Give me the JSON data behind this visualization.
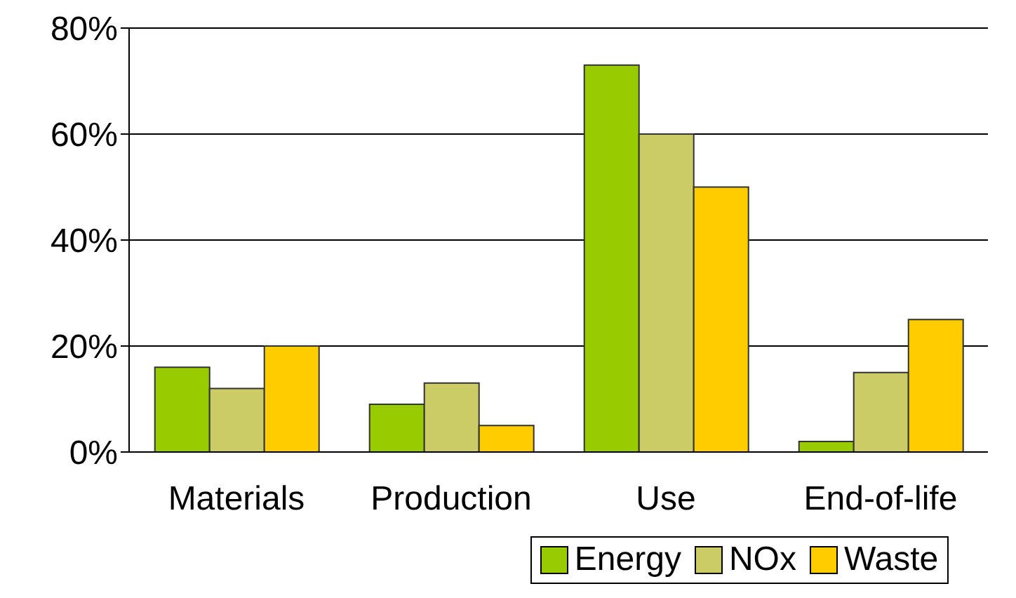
{
  "chart_data": {
    "type": "bar",
    "categories": [
      "Materials",
      "Production",
      "Use",
      "End-of-life"
    ],
    "series": [
      {
        "name": "Energy",
        "color": "#99cc00",
        "values": [
          16,
          9,
          73,
          2
        ]
      },
      {
        "name": "NOx",
        "color": "#cccc66",
        "values": [
          12,
          13,
          60,
          15
        ]
      },
      {
        "name": "Waste",
        "color": "#ffcc00",
        "values": [
          20,
          5,
          50,
          25
        ]
      }
    ],
    "ylim": [
      0,
      80
    ],
    "yticks": [
      {
        "value": 0,
        "label": "0%"
      },
      {
        "value": 20,
        "label": "20%"
      },
      {
        "value": 40,
        "label": "40%"
      },
      {
        "value": 60,
        "label": "60%"
      },
      {
        "value": 80,
        "label": "80%"
      }
    ],
    "grid": "y",
    "legend": "bottom"
  }
}
